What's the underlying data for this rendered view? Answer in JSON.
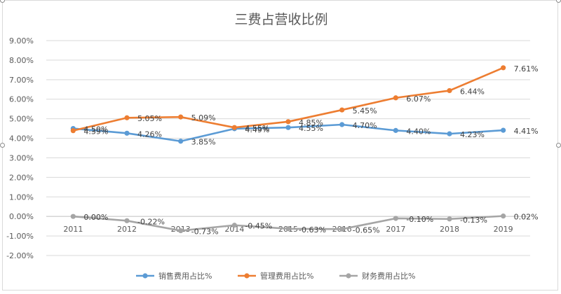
{
  "chart_data": {
    "type": "line",
    "title": "三费占营收比例",
    "xlabel": "",
    "ylabel": "",
    "categories": [
      "2011",
      "2012",
      "2013",
      "2014",
      "2015",
      "2016",
      "2017",
      "2018",
      "2019"
    ],
    "ylim": [
      -2,
      9
    ],
    "yticks": [
      "9.00%",
      "8.00%",
      "7.00%",
      "6.00%",
      "5.00%",
      "4.00%",
      "3.00%",
      "2.00%",
      "1.00%",
      "0.00%",
      "-1.00%",
      "-2.00%"
    ],
    "grid": true,
    "legend_position": "bottom",
    "series": [
      {
        "name": "销售费用占比%",
        "color": "#5b9bd5",
        "values": [
          4.5,
          4.26,
          3.85,
          4.49,
          4.55,
          4.7,
          4.4,
          4.23,
          4.41
        ],
        "labels": [
          "4.50%",
          "4.26%",
          "3.85%",
          "4.49%",
          "4.55%",
          "4.70%",
          "4.40%",
          "4.23%",
          "4.41%"
        ]
      },
      {
        "name": "管理费用占比%",
        "color": "#ed7d31",
        "values": [
          4.39,
          5.05,
          5.09,
          4.55,
          4.85,
          5.45,
          6.07,
          6.44,
          7.61
        ],
        "labels": [
          "4.39%",
          "5.05%",
          "5.09%",
          "4.55%",
          "4.85%",
          "5.45%",
          "6.07%",
          "6.44%",
          "7.61%"
        ]
      },
      {
        "name": "财务费用占比%",
        "color": "#a5a5a5",
        "values": [
          0.0,
          -0.22,
          -0.73,
          -0.45,
          -0.63,
          -0.65,
          -0.1,
          -0.13,
          0.02
        ],
        "labels": [
          "0.00%",
          "-0.22%",
          "-0.73%",
          "-0.45%",
          "-0.63%",
          "-0.65%",
          "-0.10%",
          "-0.13%",
          "0.02%"
        ]
      }
    ]
  }
}
